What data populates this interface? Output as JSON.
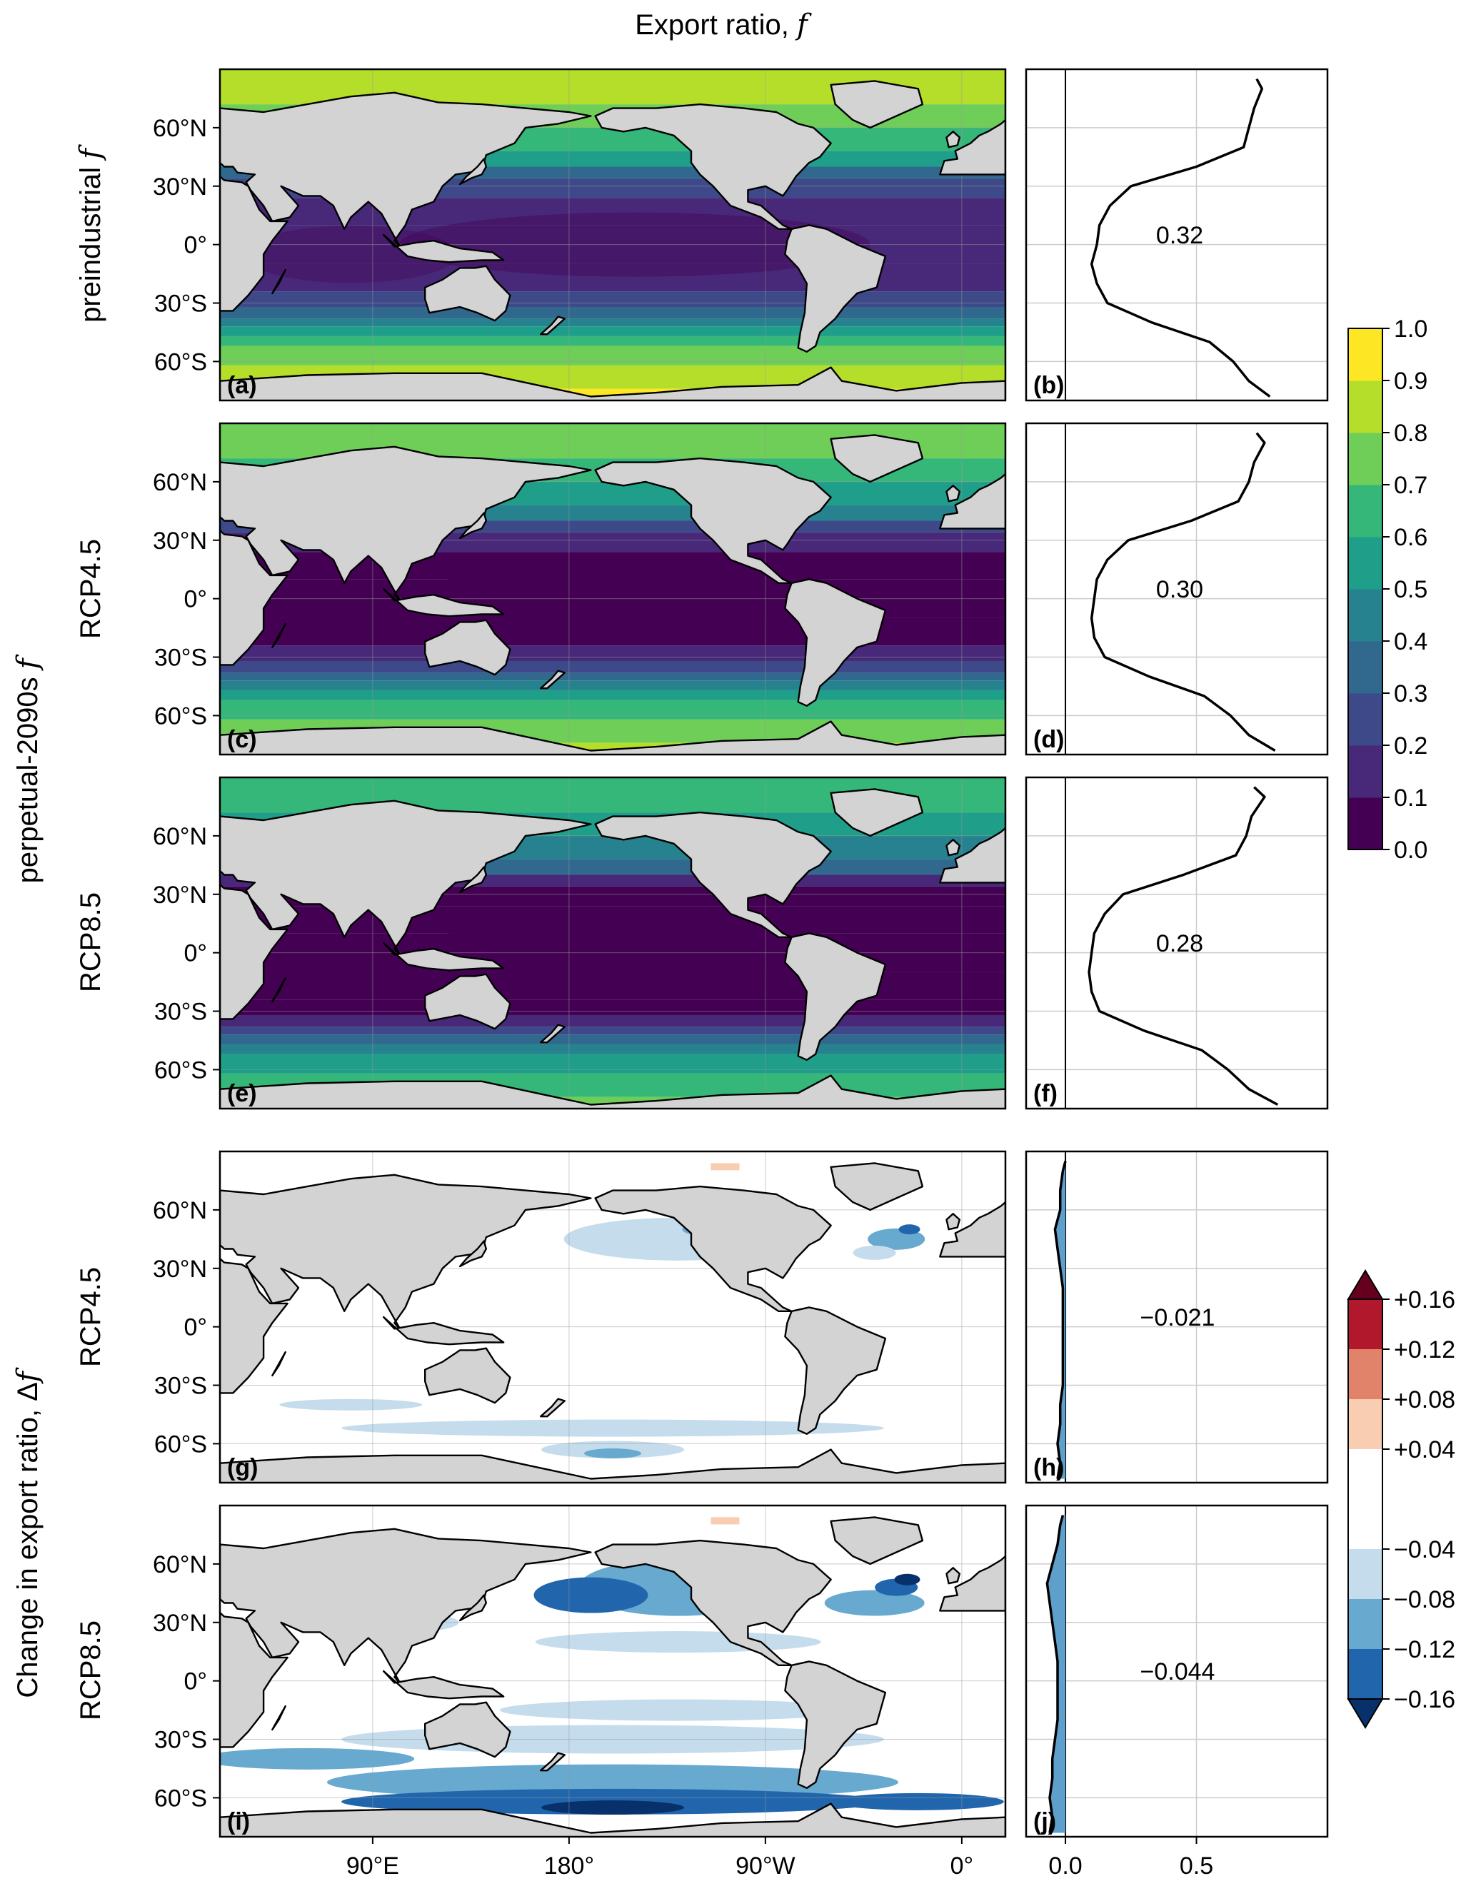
{
  "figure": {
    "title_text": "Export ratio, ",
    "title_symbol": "f"
  },
  "row_labels": {
    "a": {
      "text": "preindustrial ",
      "symbol": "f"
    },
    "group_future": {
      "text": "perpetual-2090s ",
      "symbol": "f"
    },
    "c": {
      "text": "RCP4.5"
    },
    "e": {
      "text": "RCP8.5"
    },
    "group_change": {
      "text": "Change in export ratio, Δ",
      "symbol": "f"
    },
    "g": {
      "text": "RCP4.5"
    },
    "i": {
      "text": "RCP8.5"
    }
  },
  "map_axes": {
    "lat_ticks": [
      "60°N",
      "30°N",
      "0°",
      "30°S",
      "60°S"
    ],
    "lat_values": [
      60,
      30,
      0,
      -30,
      -60
    ],
    "lon_ticks": [
      "90°E",
      "180°",
      "90°W",
      "0°"
    ],
    "lon_values": [
      90,
      180,
      270,
      360
    ],
    "lon_range": [
      20,
      380
    ],
    "lat_range": [
      -80,
      90
    ]
  },
  "profile_axes": {
    "x_ticks": [
      "0.0",
      "0.5"
    ],
    "x_values": [
      0.0,
      0.5
    ],
    "xlim": [
      -0.15,
      1.0
    ]
  },
  "panels": [
    {
      "id": "a",
      "label": "(a)",
      "kind": "map",
      "field": "preindustrial f"
    },
    {
      "id": "b",
      "label": "(b)",
      "kind": "profile",
      "global_mean": "0.32"
    },
    {
      "id": "c",
      "label": "(c)",
      "kind": "map",
      "field": "RCP4.5 f"
    },
    {
      "id": "d",
      "label": "(d)",
      "kind": "profile",
      "global_mean": "0.30"
    },
    {
      "id": "e",
      "label": "(e)",
      "kind": "map",
      "field": "RCP8.5 f"
    },
    {
      "id": "f",
      "label": "(f)",
      "kind": "profile",
      "global_mean": "0.28"
    },
    {
      "id": "g",
      "label": "(g)",
      "kind": "map",
      "field": "RCP4.5 Δf"
    },
    {
      "id": "h",
      "label": "(h)",
      "kind": "profile",
      "global_mean": "−0.021"
    },
    {
      "id": "i",
      "label": "(i)",
      "kind": "map",
      "field": "RCP8.5 Δf"
    },
    {
      "id": "j",
      "label": "(j)",
      "kind": "profile",
      "global_mean": "−0.044"
    }
  ],
  "colorbar_f": {
    "ticks": [
      "1.0",
      "0.9",
      "0.8",
      "0.7",
      "0.6",
      "0.5",
      "0.4",
      "0.3",
      "0.2",
      "0.1",
      "0.0"
    ],
    "colors": [
      "#440154",
      "#482878",
      "#3e4989",
      "#31688e",
      "#26828e",
      "#1f9e89",
      "#35b779",
      "#6ece58",
      "#b5de2b",
      "#fde725"
    ]
  },
  "colorbar_df": {
    "ticks": [
      "+0.16",
      "+0.12",
      "+0.08",
      "+0.04",
      "−0.04",
      "−0.08",
      "−0.12",
      "−0.16"
    ],
    "colors": [
      "#08306b",
      "#2166ac",
      "#67a9cf",
      "#c5dcec",
      "#ffffff",
      "#f9cdb1",
      "#e0836a",
      "#b2182b",
      "#67001f"
    ]
  },
  "colors": {
    "land": "#d3d3d3",
    "coast": "#000000",
    "profile_fill": "#5e9fcb",
    "grid": "#cccccc"
  },
  "chart_data": [
    {
      "type": "line",
      "panel": "(b)",
      "xlabel": "",
      "ylabel": "",
      "x_ticks": [
        0.0,
        0.5
      ],
      "annotation": "0.32",
      "series": [
        {
          "lat": [
            -78,
            -70,
            -60,
            -50,
            -40,
            -30,
            -20,
            -10,
            0,
            10,
            20,
            30,
            40,
            50,
            60,
            70,
            80,
            85
          ],
          "values": [
            0.78,
            0.7,
            0.64,
            0.55,
            0.33,
            0.16,
            0.12,
            0.1,
            0.12,
            0.13,
            0.17,
            0.25,
            0.5,
            0.68,
            0.7,
            0.72,
            0.75,
            0.73
          ]
        }
      ]
    },
    {
      "type": "line",
      "panel": "(d)",
      "xlabel": "",
      "ylabel": "",
      "x_ticks": [
        0.0,
        0.5
      ],
      "annotation": "0.30",
      "series": [
        {
          "lat": [
            -78,
            -70,
            -60,
            -50,
            -40,
            -30,
            -20,
            -10,
            0,
            10,
            20,
            30,
            40,
            50,
            60,
            70,
            80,
            85
          ],
          "values": [
            0.8,
            0.7,
            0.63,
            0.53,
            0.32,
            0.15,
            0.11,
            0.1,
            0.11,
            0.12,
            0.16,
            0.24,
            0.48,
            0.66,
            0.7,
            0.72,
            0.76,
            0.73
          ]
        }
      ]
    },
    {
      "type": "line",
      "panel": "(f)",
      "xlabel": "",
      "ylabel": "",
      "x_ticks": [
        0.0,
        0.5
      ],
      "annotation": "0.28",
      "series": [
        {
          "lat": [
            -78,
            -70,
            -60,
            -50,
            -40,
            -30,
            -20,
            -10,
            0,
            10,
            20,
            30,
            40,
            50,
            60,
            70,
            80,
            85
          ],
          "values": [
            0.81,
            0.7,
            0.62,
            0.52,
            0.3,
            0.13,
            0.1,
            0.09,
            0.1,
            0.11,
            0.15,
            0.22,
            0.45,
            0.65,
            0.69,
            0.71,
            0.76,
            0.72
          ]
        }
      ]
    },
    {
      "type": "area",
      "panel": "(h)",
      "xlabel": "",
      "ylabel": "",
      "x_ticks": [
        0.0,
        0.5
      ],
      "annotation": "−0.021",
      "series": [
        {
          "lat": [
            -78,
            -70,
            -60,
            -50,
            -40,
            -30,
            -20,
            -10,
            0,
            10,
            20,
            30,
            40,
            50,
            60,
            70,
            80,
            85
          ],
          "values": [
            -0.03,
            -0.02,
            -0.03,
            -0.02,
            -0.02,
            -0.01,
            -0.01,
            -0.01,
            -0.01,
            -0.01,
            -0.01,
            -0.02,
            -0.03,
            -0.04,
            -0.02,
            -0.02,
            -0.01,
            0.0
          ]
        }
      ]
    },
    {
      "type": "area",
      "panel": "(j)",
      "xlabel": "",
      "ylabel": "",
      "x_ticks": [
        0.0,
        0.5
      ],
      "annotation": "−0.044",
      "series": [
        {
          "lat": [
            -78,
            -70,
            -60,
            -50,
            -40,
            -30,
            -20,
            -10,
            0,
            10,
            20,
            30,
            40,
            50,
            60,
            70,
            80,
            85
          ],
          "values": [
            -0.06,
            -0.05,
            -0.06,
            -0.05,
            -0.05,
            -0.04,
            -0.03,
            -0.03,
            -0.03,
            -0.03,
            -0.04,
            -0.05,
            -0.06,
            -0.07,
            -0.05,
            -0.03,
            -0.02,
            -0.01
          ]
        }
      ]
    }
  ]
}
